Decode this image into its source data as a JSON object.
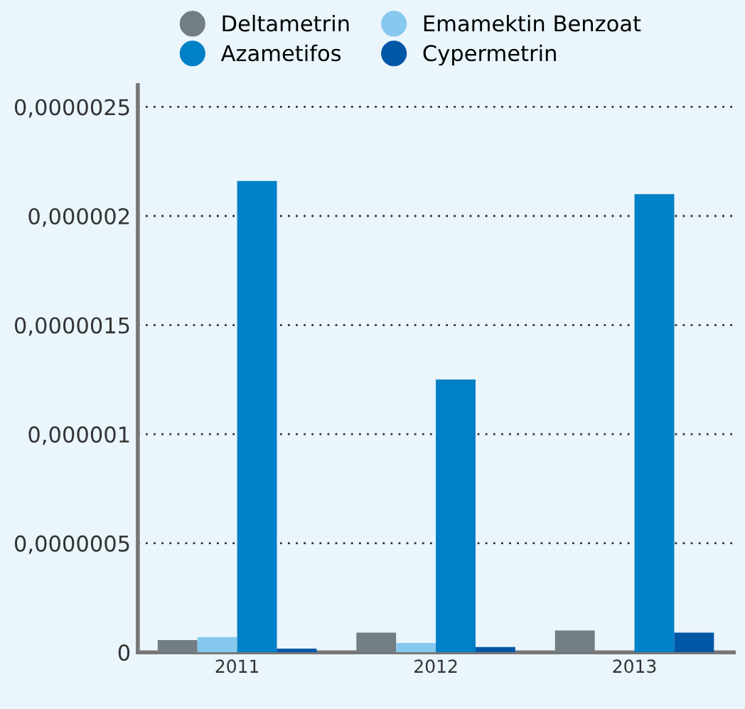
{
  "chart_data": {
    "type": "bar",
    "categories": [
      "2011",
      "2012",
      "2013"
    ],
    "series": [
      {
        "name": "Deltametrin",
        "color": "#737d84",
        "values": [
          5.6e-08,
          9e-08,
          1e-07
        ]
      },
      {
        "name": "Emamektin Benzoat",
        "color": "#87c8ee",
        "values": [
          7e-08,
          4.3e-08,
          null
        ]
      },
      {
        "name": "Azametifos",
        "color": "#0080c6",
        "values": [
          2.16e-06,
          1.25e-06,
          2.1e-06
        ]
      },
      {
        "name": "Cypermetrin",
        "color": "#0057a6",
        "values": [
          1.7e-08,
          2.4e-08,
          9e-08
        ]
      }
    ],
    "ylim": [
      0,
      2.6e-06
    ],
    "yticks": [
      {
        "value": 0,
        "label": "0"
      },
      {
        "value": 5e-07,
        "label": "0,0000005"
      },
      {
        "value": 1e-06,
        "label": "0,000001"
      },
      {
        "value": 1.5e-06,
        "label": "0,0000015"
      },
      {
        "value": 2e-06,
        "label": "0,000002"
      },
      {
        "value": 2.5e-06,
        "label": "0,0000025"
      }
    ],
    "grid": "y",
    "legend": "top"
  }
}
